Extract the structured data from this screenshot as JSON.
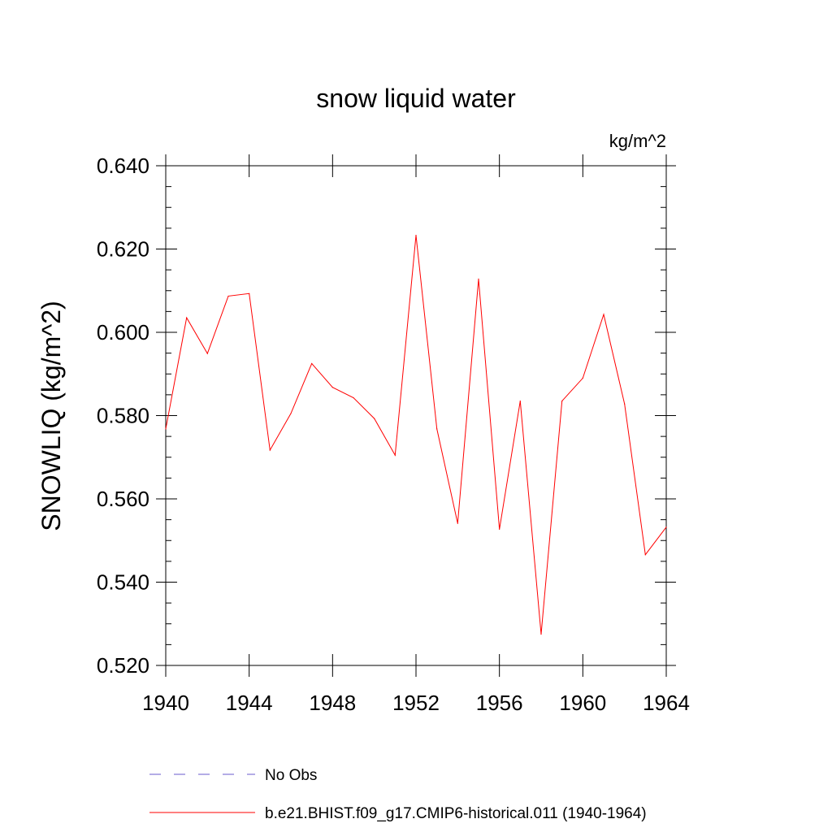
{
  "chart_data": {
    "type": "line",
    "title": "snow liquid water",
    "units_label": "kg/m^2",
    "ylabel": "SNOWLIQ  (kg/m^2)",
    "xlabel": "",
    "xlim": [
      1940,
      1964
    ],
    "ylim": [
      0.52,
      0.64
    ],
    "x_ticks": [
      "1940",
      "1944",
      "1948",
      "1952",
      "1956",
      "1960",
      "1964"
    ],
    "y_ticks": [
      "0.520",
      "0.540",
      "0.560",
      "0.580",
      "0.600",
      "0.620",
      "0.640"
    ],
    "grid": false,
    "legend_position": "bottom",
    "series": [
      {
        "name": "No Obs",
        "color": "#6a5acd",
        "style": "dashed",
        "x": [],
        "y": []
      },
      {
        "name": "b.e21.BHIST.f09_g17.CMIP6-historical.011 (1940-1964)",
        "color": "#ff0000",
        "style": "solid",
        "x": [
          1940,
          1941,
          1942,
          1943,
          1944,
          1945,
          1946,
          1947,
          1948,
          1949,
          1950,
          1951,
          1952,
          1953,
          1954,
          1955,
          1956,
          1957,
          1958,
          1959,
          1960,
          1961,
          1962,
          1963,
          1964
        ],
        "y": [
          0.5768,
          0.6035,
          0.5949,
          0.6087,
          0.6093,
          0.5717,
          0.5805,
          0.5925,
          0.5868,
          0.5843,
          0.5793,
          0.5705,
          0.6233,
          0.5768,
          0.5541,
          0.6128,
          0.5527,
          0.5835,
          0.5275,
          0.5835,
          0.589,
          0.6043,
          0.5828,
          0.5466,
          0.5532
        ]
      }
    ]
  }
}
